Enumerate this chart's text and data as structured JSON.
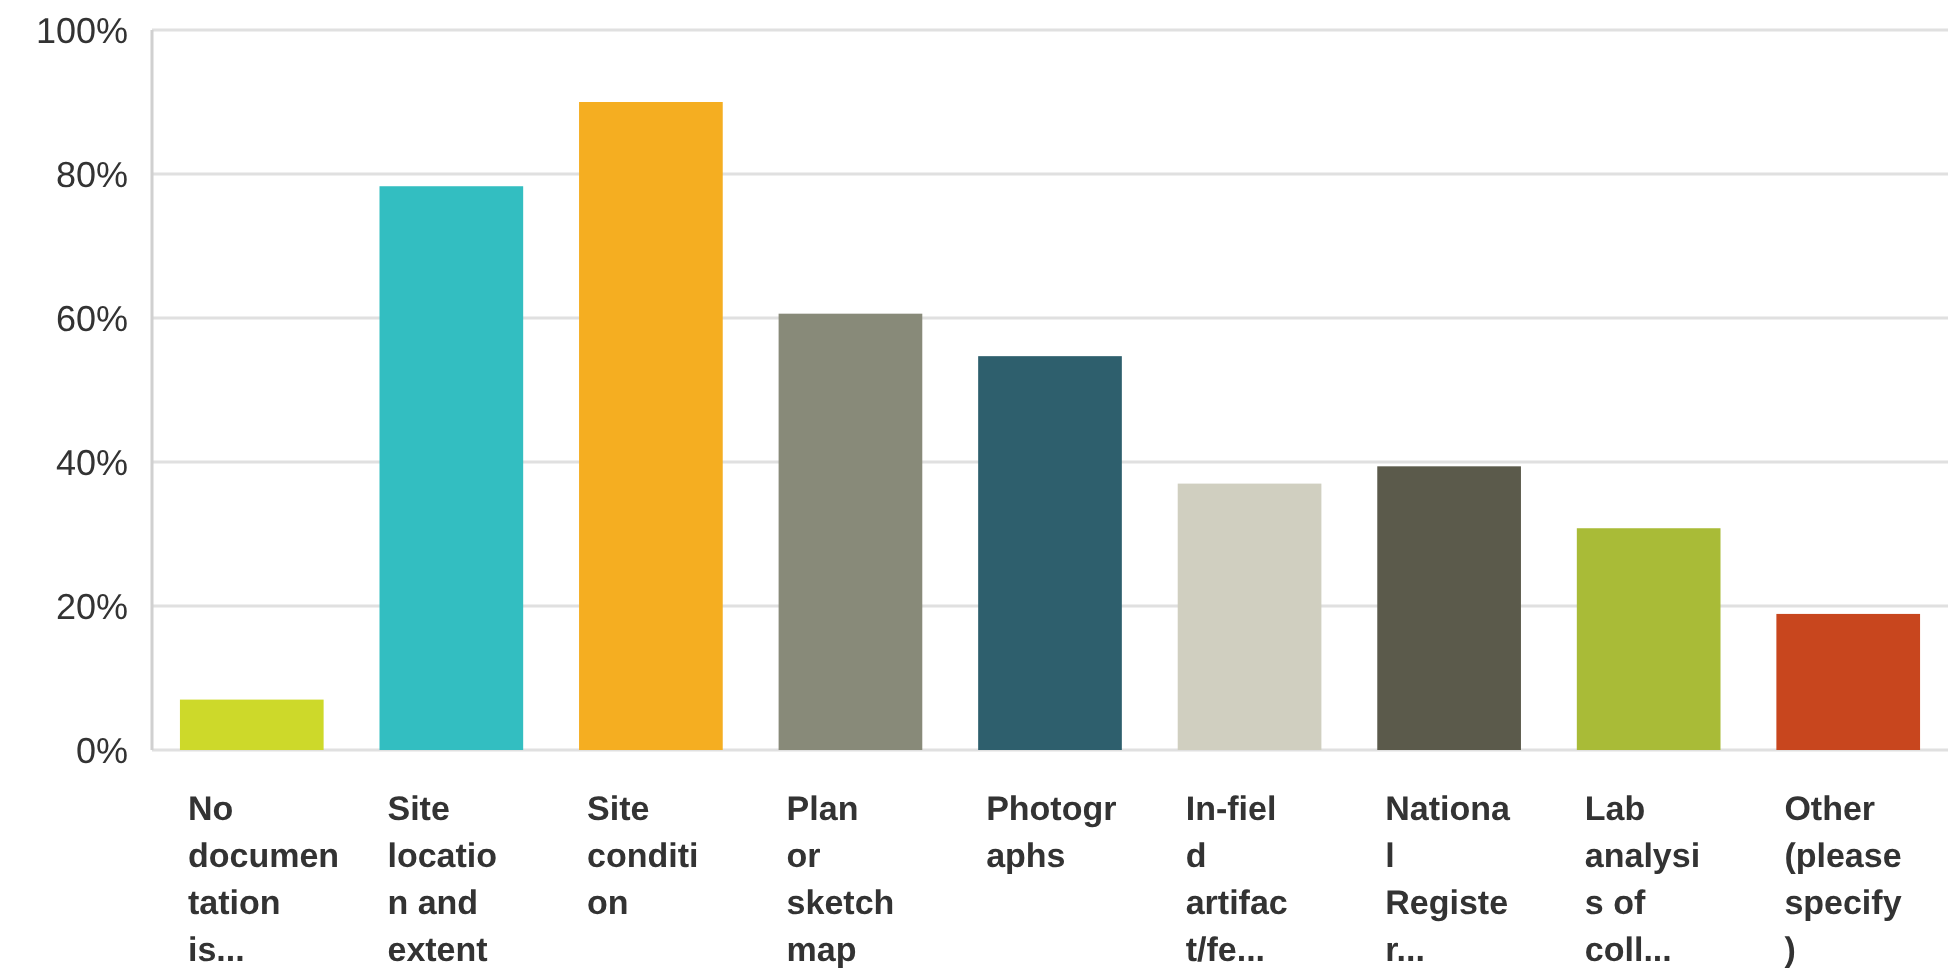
{
  "chart_data": {
    "type": "bar",
    "categories": [
      "No\ndocumen\ntation\nis...",
      "Site\nlocatio\nn and\nextent",
      "Site\nconditi\non",
      "Plan\nor\nsketch\nmap",
      "Photogr\naphs",
      "In-fiel\nd\nartifac\nt/fe...",
      "Nationa\nl\nRegiste\nr...",
      "Lab\nanalysi\ns of\ncoll...",
      "Other\n(please\nspecify\n)"
    ],
    "values": [
      7,
      78.3,
      90,
      60.6,
      54.7,
      37,
      39.4,
      30.8,
      18.9
    ],
    "colors": [
      "#cdd92a",
      "#33bec1",
      "#f5ae21",
      "#888a79",
      "#2e5f6d",
      "#d0cfc0",
      "#5b5a4b",
      "#a9bb37",
      "#c8461e"
    ],
    "ylim": [
      0,
      100
    ],
    "yticks": [
      {
        "value": 0,
        "label": "0%"
      },
      {
        "value": 20,
        "label": "20%"
      },
      {
        "value": 40,
        "label": "40%"
      },
      {
        "value": 60,
        "label": "60%"
      },
      {
        "value": 80,
        "label": "80%"
      },
      {
        "value": 100,
        "label": "100%"
      }
    ],
    "grid": "y"
  }
}
